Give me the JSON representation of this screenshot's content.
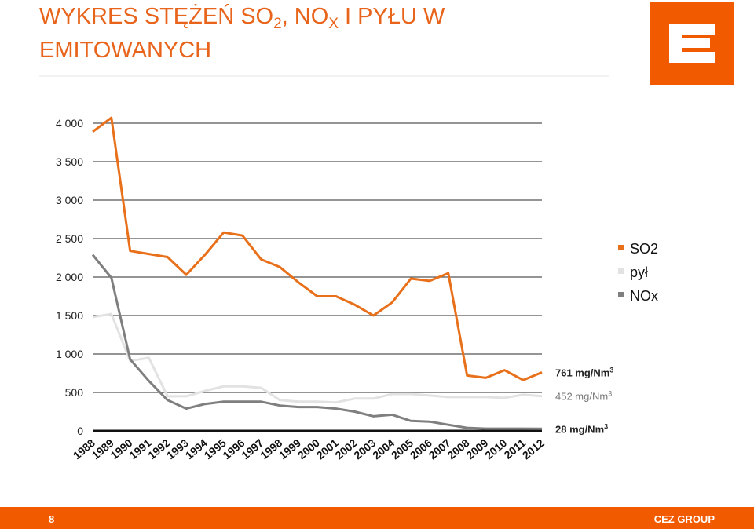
{
  "header": {
    "title_line1": [
      "WYKRES STĘŻEŃ SO",
      "2",
      ", NO",
      "X",
      " I PYŁU W"
    ],
    "title_line2": "EMITOWANYCH"
  },
  "chart_data": {
    "type": "line",
    "categories": [
      "1988",
      "1989",
      "1990",
      "1991",
      "1992",
      "1993",
      "1994",
      "1995",
      "1996",
      "1997",
      "1998",
      "1999",
      "2000",
      "2001",
      "2002",
      "2003",
      "2004",
      "2005",
      "2006",
      "2007",
      "2008",
      "2009",
      "2010",
      "2011",
      "2012"
    ],
    "series": [
      {
        "name": "SO2",
        "color": "#e8701a",
        "values": [
          3890,
          4070,
          2340,
          2300,
          2260,
          2030,
          2290,
          2580,
          2540,
          2230,
          2130,
          1930,
          1750,
          1750,
          1640,
          1500,
          1670,
          1980,
          1950,
          2050,
          720,
          690,
          790,
          660,
          761
        ]
      },
      {
        "name": "pył",
        "color": "#e2e2e2",
        "values": [
          1480,
          1520,
          910,
          950,
          450,
          450,
          520,
          580,
          580,
          560,
          400,
          380,
          380,
          370,
          420,
          420,
          480,
          480,
          460,
          440,
          440,
          440,
          430,
          470,
          452
        ]
      },
      {
        "name": "NOx",
        "color": "#7f7f7f",
        "values": [
          2290,
          1990,
          930,
          650,
          400,
          290,
          350,
          380,
          380,
          380,
          330,
          310,
          310,
          290,
          250,
          190,
          210,
          130,
          120,
          80,
          40,
          30,
          30,
          30,
          28
        ]
      }
    ],
    "ylim": [
      0,
      4000
    ],
    "yticks": [
      0,
      {
        "value": 500,
        "label": "500"
      },
      {
        "value": 1000,
        "label": "1 000"
      },
      {
        "value": 1500,
        "label": "1 500"
      },
      {
        "value": 2000,
        "label": "2 000"
      },
      {
        "value": 2500,
        "label": "2 500"
      },
      {
        "value": 3000,
        "label": "3 000"
      },
      {
        "value": 3500,
        "label": "3 500"
      },
      {
        "value": 4000,
        "label": "4 000"
      }
    ],
    "grid": true,
    "legend": "right",
    "annotations": [
      {
        "text": "761 mg/Nm",
        "sup": "3"
      },
      {
        "text": "452 mg/Nm",
        "sup": "3"
      },
      {
        "text": "28 mg/Nm",
        "sup": "3"
      }
    ]
  },
  "footer": {
    "page": "8",
    "brand": "CEZ GROUP"
  }
}
